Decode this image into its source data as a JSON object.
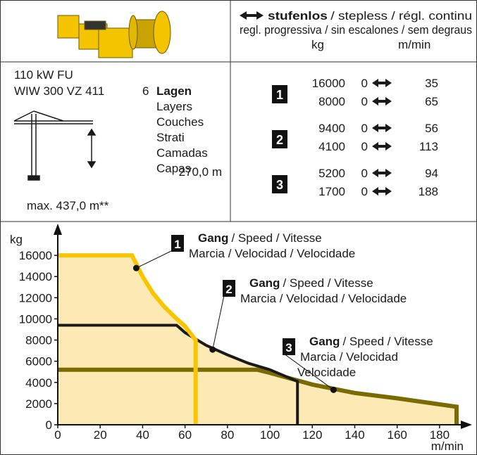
{
  "header": {
    "stepless_title": "stufenlos",
    "stepless_sub": "/ stepless / régl. continu",
    "stepless_line2": "regl. progressiva / sin escalones / sem degraus",
    "unit_load": "kg",
    "unit_speed": "m/min"
  },
  "drive": {
    "power": "110 kW FU",
    "model": "WIW 300 VZ 411",
    "layers_count": "6",
    "layers": [
      "Lagen",
      "Layers",
      "Couches",
      "Strati",
      "Camadas",
      "Capas"
    ],
    "rope_length": "270,0 m",
    "max_length": "max. 437,0 m**"
  },
  "speeds": [
    {
      "gear": "1",
      "rows": [
        [
          16000,
          0,
          35
        ],
        [
          8000,
          0,
          65
        ]
      ]
    },
    {
      "gear": "2",
      "rows": [
        [
          9400,
          0,
          56
        ],
        [
          4100,
          0,
          113
        ]
      ]
    },
    {
      "gear": "3",
      "rows": [
        [
          5200,
          0,
          94
        ],
        [
          1700,
          0,
          188
        ]
      ]
    }
  ],
  "chart_data": {
    "type": "line",
    "x_label": "m/min",
    "y_label": "kg",
    "xlim": [
      0,
      190
    ],
    "xticks": [
      0,
      20,
      40,
      60,
      80,
      100,
      120,
      140,
      160,
      180
    ],
    "ylim": [
      0,
      18000
    ],
    "yticks": [
      0,
      2000,
      4000,
      6000,
      8000,
      10000,
      12000,
      14000,
      16000
    ],
    "fill_color": "#fde9b4",
    "series": [
      {
        "name": "1",
        "color": "#f7c600",
        "x": [
          0,
          35,
          40,
          45,
          50,
          55,
          60,
          65,
          65
        ],
        "values": [
          16000,
          16000,
          14000,
          12400,
          11200,
          10200,
          9300,
          8000,
          0
        ]
      },
      {
        "name": "2",
        "color": "#1a1a1a",
        "x": [
          0,
          56,
          60,
          70,
          80,
          90,
          100,
          113,
          113
        ],
        "values": [
          9400,
          9400,
          8700,
          7500,
          6600,
          5800,
          5200,
          4100,
          0
        ]
      },
      {
        "name": "3",
        "color": "#7a6a00",
        "x": [
          0,
          94,
          100,
          120,
          140,
          160,
          188,
          188
        ],
        "values": [
          5200,
          5200,
          4900,
          3800,
          3000,
          2500,
          1700,
          0
        ]
      }
    ],
    "annotations": [
      {
        "label": "1",
        "title": "Gang",
        "lines": [
          "/ Speed / Vitesse",
          "Marcia / Velocidad / Velocidade"
        ],
        "x": 37,
        "y": 14800
      },
      {
        "label": "2",
        "title": "Gang",
        "lines": [
          "/ Speed / Vitesse",
          "Marcia / Velocidad / Velocidade"
        ],
        "x": 73,
        "y": 7100
      },
      {
        "label": "3",
        "title": "Gang",
        "lines": [
          "/ Speed / Vitesse",
          "Marcia / Velocidad",
          "Velocidade"
        ],
        "x": 130,
        "y": 3300
      }
    ]
  }
}
